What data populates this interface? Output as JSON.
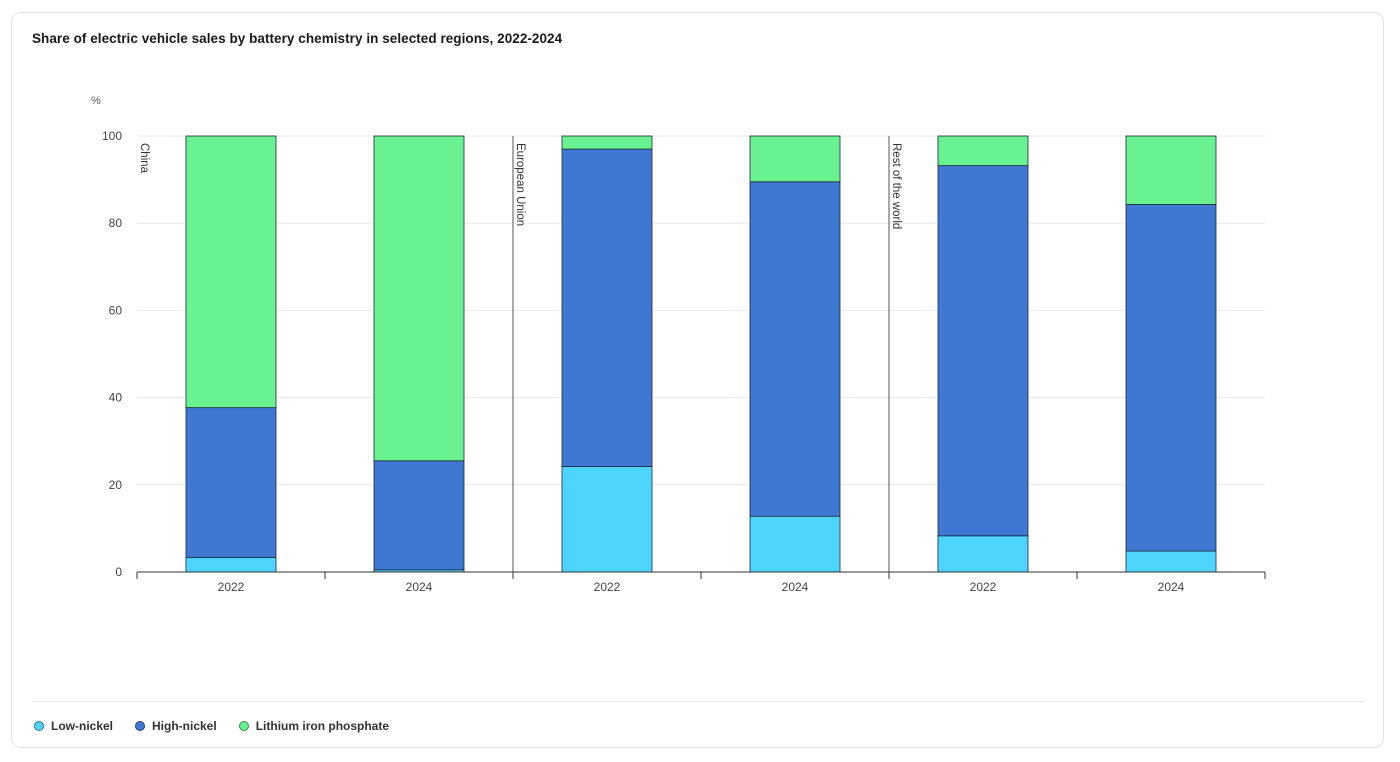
{
  "title": "Share of electric vehicle sales by battery chemistry in selected regions, 2022-2024",
  "colors": {
    "low_nickel": "#4dd5ff",
    "high_nickel": "#3f78d2",
    "lfp": "#69f290"
  },
  "chart_data": {
    "type": "bar",
    "stacked": true,
    "ylabel": "%",
    "ylim": [
      0,
      100
    ],
    "yticks": [
      0,
      20,
      40,
      60,
      80,
      100
    ],
    "grid": true,
    "legend_position": "bottom-left",
    "groups": [
      {
        "region": "China",
        "categories": [
          "2022",
          "2024"
        ]
      },
      {
        "region": "European Union",
        "categories": [
          "2022",
          "2024"
        ]
      },
      {
        "region": "Rest of the world",
        "categories": [
          "2022",
          "2024"
        ]
      }
    ],
    "categories": [
      "2022",
      "2024",
      "2022",
      "2024",
      "2022",
      "2024"
    ],
    "series": [
      {
        "name": "Low-nickel",
        "color": "#4dd5ff",
        "values": [
          3.3,
          0.5,
          24.2,
          12.8,
          8.3,
          4.8
        ]
      },
      {
        "name": "High-nickel",
        "color": "#3f78d2",
        "values": [
          34.4,
          25.0,
          72.8,
          76.7,
          84.9,
          79.5
        ]
      },
      {
        "name": "Lithium iron phosphate",
        "color": "#69f290",
        "values": [
          62.3,
          74.5,
          3.0,
          10.5,
          6.8,
          15.7
        ]
      }
    ]
  }
}
